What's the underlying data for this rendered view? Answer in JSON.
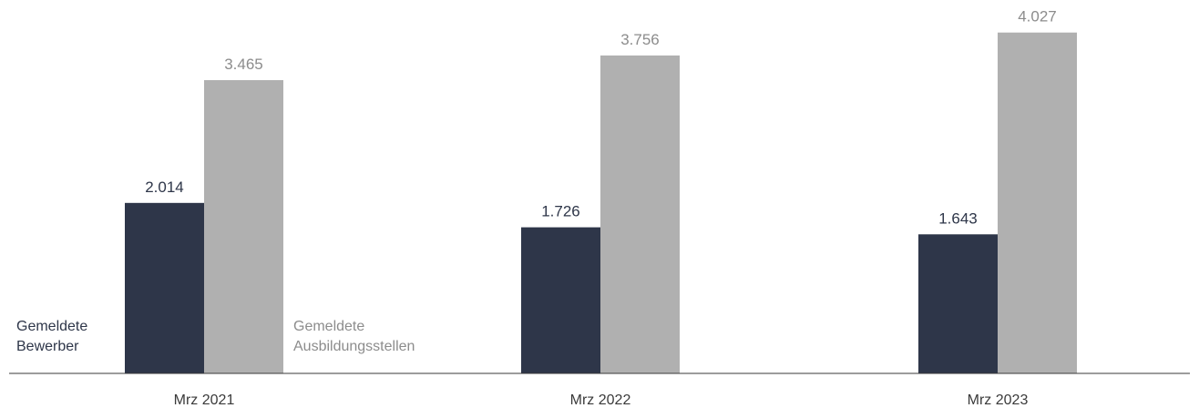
{
  "chart_data": {
    "type": "bar",
    "categories": [
      "Mrz 2021",
      "Mrz 2022",
      "Mrz 2023"
    ],
    "series": [
      {
        "name": "Gemeldete Bewerber",
        "name_lines": [
          "Gemeldete",
          "Bewerber"
        ],
        "values": [
          2014,
          1726,
          1643
        ],
        "labels": [
          "2.014",
          "1.726",
          "1.643"
        ],
        "color": "#2e3649",
        "label_color": "#2e3649"
      },
      {
        "name": "Gemeldete Ausbildungsstellen",
        "name_lines": [
          "Gemeldete",
          "Ausbildungsstellen"
        ],
        "values": [
          3465,
          3756,
          4027
        ],
        "labels": [
          "3.465",
          "3.756",
          "4.027"
        ],
        "color": "#b0b0b0",
        "label_color": "#8c8c8c"
      }
    ],
    "title": "",
    "xlabel": "",
    "ylabel": "",
    "ylim": [
      0,
      4250
    ],
    "grid": false,
    "legend": "inline-left-of-first-group",
    "value_labels": true,
    "axis_color": "#3a3a3a"
  }
}
